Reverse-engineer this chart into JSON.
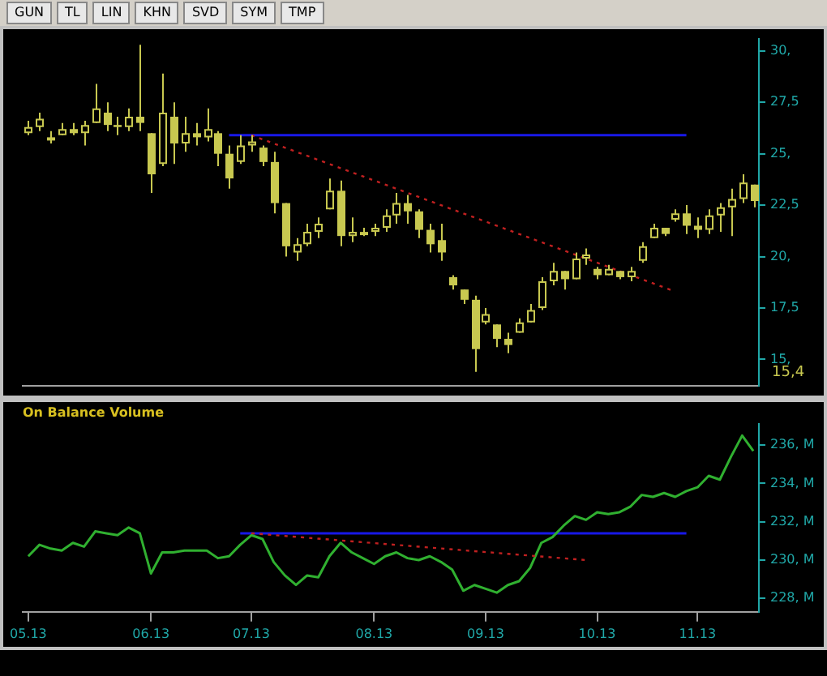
{
  "chart_data": [
    {
      "type": "candlestick",
      "color": "#c8c850",
      "grid": false,
      "legend": false,
      "tick_labels": "y",
      "annotations": [
        "GUN",
        "TL",
        "LIN",
        "KHN",
        "SVD",
        "SYM",
        "TMP",
        "15,4"
      ],
      "categories": [
        "05.13",
        null,
        null,
        null,
        null,
        null,
        null,
        null,
        null,
        null,
        null,
        "06.13",
        null,
        null,
        null,
        null,
        null,
        null,
        null,
        null,
        "07.13",
        null,
        null,
        null,
        null,
        null,
        null,
        null,
        null,
        null,
        null,
        "08.13",
        null,
        null,
        null,
        null,
        null,
        null,
        null,
        null,
        null,
        "09.13",
        null,
        null,
        null,
        null,
        null,
        null,
        null,
        null,
        null,
        "10.13",
        null,
        null,
        null,
        null,
        null,
        null,
        null,
        null,
        "11.13",
        null,
        null,
        null,
        null,
        null
      ],
      "ylim": [
        13.7,
        30.6
      ],
      "yticks": [
        {
          "value": 15,
          "label": "15,"
        },
        {
          "value": 17.5,
          "label": "17,5"
        },
        {
          "value": 20,
          "label": "20,"
        },
        {
          "value": 22.5,
          "label": "22,5"
        },
        {
          "value": 25,
          "label": "25,"
        },
        {
          "value": 27.5,
          "label": "27,5"
        },
        {
          "value": 30,
          "label": "30,"
        }
      ],
      "ohlc": [
        [
          26.0,
          26.6,
          25.9,
          26.3
        ],
        [
          26.3,
          27.0,
          26.1,
          26.7
        ],
        [
          25.7,
          26.1,
          25.5,
          25.8
        ],
        [
          25.9,
          26.5,
          25.9,
          26.2
        ],
        [
          26.2,
          26.5,
          25.9,
          26.0
        ],
        [
          26.0,
          26.6,
          25.4,
          26.4
        ],
        [
          26.5,
          28.4,
          26.5,
          27.2
        ],
        [
          27.0,
          27.5,
          26.1,
          26.4
        ],
        [
          26.4,
          26.8,
          25.9,
          26.3
        ],
        [
          26.3,
          27.2,
          26.1,
          26.8
        ],
        [
          26.8,
          30.3,
          26.1,
          26.5
        ],
        [
          26.0,
          26.0,
          23.1,
          24.0
        ],
        [
          24.5,
          28.9,
          24.4,
          27.0
        ],
        [
          26.8,
          27.5,
          24.5,
          25.5
        ],
        [
          25.5,
          26.8,
          25.1,
          26.0
        ],
        [
          26.0,
          26.5,
          25.4,
          25.8
        ],
        [
          25.8,
          27.2,
          25.6,
          26.2
        ],
        [
          26.0,
          26.1,
          24.4,
          25.0
        ],
        [
          25.0,
          25.4,
          23.3,
          23.8
        ],
        [
          24.6,
          25.9,
          24.5,
          25.4
        ],
        [
          25.4,
          25.9,
          25.1,
          25.6
        ],
        [
          25.3,
          25.4,
          24.4,
          24.6
        ],
        [
          24.6,
          25.1,
          22.1,
          22.6
        ],
        [
          22.6,
          22.6,
          20.0,
          20.5
        ],
        [
          20.2,
          20.9,
          19.8,
          20.6
        ],
        [
          20.6,
          21.6,
          20.5,
          21.2
        ],
        [
          21.2,
          21.9,
          20.9,
          21.6
        ],
        [
          22.3,
          23.8,
          22.3,
          23.2
        ],
        [
          23.2,
          23.7,
          20.5,
          21.0
        ],
        [
          21.0,
          21.9,
          20.7,
          21.2
        ],
        [
          21.1,
          21.4,
          21.0,
          21.2
        ],
        [
          21.2,
          21.6,
          21.0,
          21.4
        ],
        [
          21.4,
          22.3,
          21.2,
          22.0
        ],
        [
          22.0,
          23.1,
          21.6,
          22.6
        ],
        [
          22.6,
          23.0,
          21.6,
          22.2
        ],
        [
          22.2,
          22.3,
          20.9,
          21.3
        ],
        [
          21.3,
          21.6,
          20.2,
          20.6
        ],
        [
          20.8,
          21.6,
          19.8,
          20.2
        ],
        [
          19.0,
          19.1,
          18.4,
          18.6
        ],
        [
          18.4,
          18.4,
          17.7,
          17.9
        ],
        [
          17.9,
          18.1,
          14.4,
          15.5
        ],
        [
          16.8,
          17.5,
          16.7,
          17.2
        ],
        [
          16.7,
          16.7,
          15.6,
          16.0
        ],
        [
          16.0,
          16.3,
          15.3,
          15.7
        ],
        [
          16.3,
          17.0,
          16.3,
          16.8
        ],
        [
          16.8,
          17.7,
          16.8,
          17.4
        ],
        [
          17.5,
          19.0,
          17.4,
          18.8
        ],
        [
          18.8,
          19.7,
          18.6,
          19.3
        ],
        [
          19.3,
          19.3,
          18.4,
          18.9
        ],
        [
          18.9,
          20.2,
          18.9,
          19.9
        ],
        [
          19.9,
          20.4,
          19.6,
          20.1
        ],
        [
          19.4,
          19.5,
          18.9,
          19.1
        ],
        [
          19.1,
          19.6,
          19.1,
          19.4
        ],
        [
          19.3,
          19.3,
          18.9,
          19.0
        ],
        [
          19.0,
          19.5,
          18.8,
          19.3
        ],
        [
          19.8,
          20.7,
          19.7,
          20.5
        ],
        [
          20.9,
          21.6,
          20.9,
          21.4
        ],
        [
          21.4,
          21.4,
          21.0,
          21.1
        ],
        [
          21.8,
          22.3,
          21.7,
          22.1
        ],
        [
          22.1,
          22.5,
          21.1,
          21.5
        ],
        [
          21.5,
          21.9,
          20.9,
          21.3
        ],
        [
          21.3,
          22.3,
          21.1,
          22.0
        ],
        [
          22.0,
          22.6,
          21.2,
          22.4
        ],
        [
          22.4,
          23.3,
          21.0,
          22.8
        ],
        [
          22.8,
          24.0,
          22.6,
          23.6
        ],
        [
          23.5,
          23.5,
          22.4,
          22.7
        ]
      ],
      "series": [
        {
          "type": "line",
          "color": "#1818e8",
          "values": [
            null,
            null,
            null,
            null,
            null,
            null,
            null,
            null,
            null,
            null,
            null,
            null,
            null,
            null,
            null,
            null,
            null,
            null,
            25.9,
            25.9,
            25.9,
            25.9,
            25.9,
            25.9,
            25.9,
            25.9,
            25.9,
            25.9,
            25.9,
            25.9,
            25.9,
            25.9,
            25.9,
            25.9,
            25.9,
            25.9,
            25.9,
            25.9,
            25.9,
            25.9,
            25.9,
            25.9,
            25.9,
            25.9,
            25.9,
            25.9,
            25.9,
            25.9,
            25.9,
            25.9,
            25.9,
            25.9,
            25.9,
            25.9,
            25.9,
            25.9,
            25.9,
            25.9,
            25.9,
            25.9,
            null,
            null,
            null,
            null,
            null,
            null
          ]
        },
        {
          "type": "line",
          "color": "#c02020",
          "line_style": "dotted",
          "values": [
            null,
            null,
            null,
            null,
            null,
            null,
            null,
            null,
            null,
            null,
            null,
            null,
            null,
            null,
            null,
            null,
            null,
            null,
            null,
            null,
            25.9,
            null,
            null,
            null,
            null,
            null,
            null,
            null,
            null,
            null,
            null,
            null,
            null,
            null,
            null,
            null,
            null,
            null,
            null,
            null,
            null,
            null,
            null,
            null,
            null,
            null,
            null,
            null,
            null,
            null,
            null,
            null,
            null,
            null,
            null,
            null,
            null,
            null,
            18.3,
            null,
            null,
            null,
            null,
            null,
            null,
            null
          ]
        }
      ]
    },
    {
      "type": "line",
      "title": "On Balance Volume",
      "grid": false,
      "legend": false,
      "categories": [
        "05.13",
        null,
        null,
        null,
        null,
        null,
        null,
        null,
        null,
        null,
        null,
        "06.13",
        null,
        null,
        null,
        null,
        null,
        null,
        null,
        null,
        "07.13",
        null,
        null,
        null,
        null,
        null,
        null,
        null,
        null,
        null,
        null,
        "08.13",
        null,
        null,
        null,
        null,
        null,
        null,
        null,
        null,
        null,
        "09.13",
        null,
        null,
        null,
        null,
        null,
        null,
        null,
        null,
        null,
        "10.13",
        null,
        null,
        null,
        null,
        null,
        null,
        null,
        null,
        "11.13",
        null,
        null,
        null,
        null,
        null
      ],
      "ylim": [
        227.3,
        237.1
      ],
      "yticks": [
        {
          "value": 228,
          "label": "228, M"
        },
        {
          "value": 230,
          "label": "230, M"
        },
        {
          "value": 232,
          "label": "232, M"
        },
        {
          "value": 234,
          "label": "234, M"
        },
        {
          "value": 236,
          "label": "236, M"
        }
      ],
      "series": [
        {
          "color": "#30b030",
          "values": [
            230.2,
            230.8,
            230.6,
            230.5,
            230.9,
            230.7,
            231.5,
            231.4,
            231.3,
            231.7,
            231.4,
            229.3,
            230.4,
            230.4,
            230.5,
            230.5,
            230.5,
            230.1,
            230.2,
            230.8,
            231.3,
            231.1,
            229.9,
            229.2,
            228.7,
            229.2,
            229.1,
            230.2,
            230.9,
            230.4,
            230.1,
            229.8,
            230.2,
            230.4,
            230.1,
            230.0,
            230.2,
            229.9,
            229.5,
            228.4,
            228.7,
            228.5,
            228.3,
            228.7,
            228.9,
            229.6,
            230.9,
            231.2,
            231.8,
            232.3,
            232.1,
            232.5,
            232.4,
            232.5,
            232.8,
            233.4,
            233.3,
            233.5,
            233.3,
            233.6,
            233.8,
            234.4,
            234.2,
            235.4,
            236.5,
            235.7
          ]
        },
        {
          "color": "#1818e8",
          "values": [
            null,
            null,
            null,
            null,
            null,
            null,
            null,
            null,
            null,
            null,
            null,
            null,
            null,
            null,
            null,
            null,
            null,
            null,
            null,
            231.4,
            231.4,
            231.4,
            231.4,
            231.4,
            231.4,
            231.4,
            231.4,
            231.4,
            231.4,
            231.4,
            231.4,
            231.4,
            231.4,
            231.4,
            231.4,
            231.4,
            231.4,
            231.4,
            231.4,
            231.4,
            231.4,
            231.4,
            231.4,
            231.4,
            231.4,
            231.4,
            231.4,
            231.4,
            231.4,
            231.4,
            231.4,
            231.4,
            231.4,
            231.4,
            231.4,
            231.4,
            231.4,
            231.4,
            231.4,
            231.4,
            null,
            null,
            null,
            null,
            null,
            null
          ]
        },
        {
          "color": "#c02020",
          "line_style": "dotted",
          "values": [
            null,
            null,
            null,
            null,
            null,
            null,
            null,
            null,
            null,
            null,
            null,
            null,
            null,
            null,
            null,
            null,
            null,
            null,
            null,
            null,
            231.4,
            null,
            null,
            null,
            null,
            null,
            null,
            null,
            null,
            null,
            null,
            null,
            null,
            null,
            null,
            null,
            null,
            null,
            null,
            null,
            null,
            null,
            null,
            null,
            null,
            null,
            null,
            null,
            null,
            null,
            230.0,
            null,
            null,
            null,
            null,
            null,
            null,
            null,
            null,
            null,
            null,
            null,
            null,
            null,
            null,
            null
          ]
        }
      ]
    }
  ]
}
